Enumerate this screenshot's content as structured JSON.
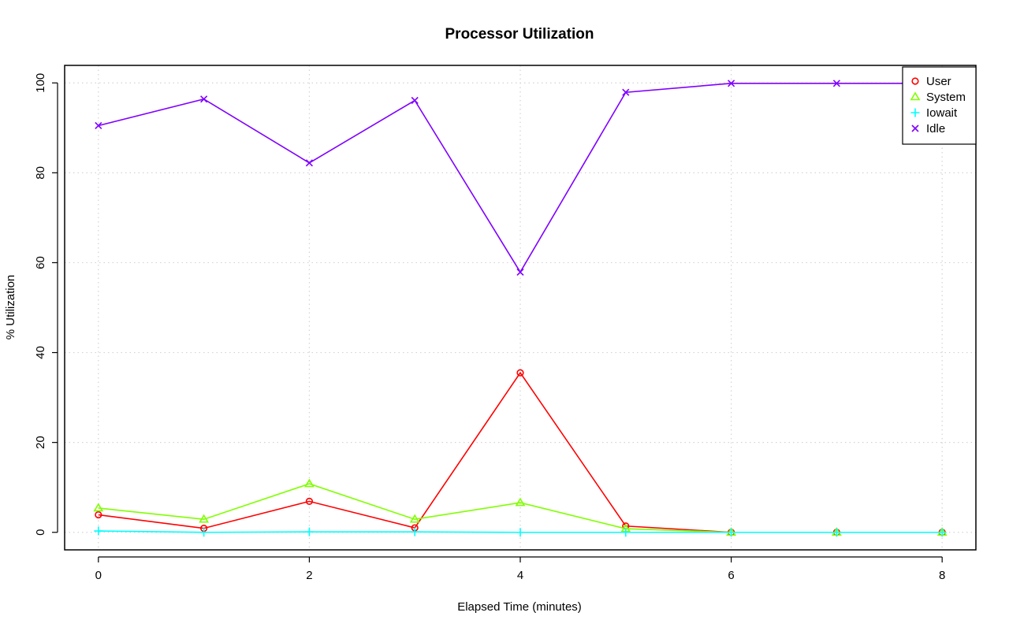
{
  "chart_data": {
    "type": "line",
    "title": "Processor Utilization",
    "xlabel": "Elapsed Time (minutes)",
    "ylabel": "% Utilization",
    "x": [
      0,
      1,
      2,
      3,
      4,
      5,
      6,
      7,
      8
    ],
    "xlim": [
      -0.32,
      8.32
    ],
    "ylim": [
      -3.9,
      103.9
    ],
    "xticks": [
      0,
      2,
      4,
      6,
      8
    ],
    "yticks": [
      0,
      20,
      40,
      60,
      80,
      100
    ],
    "grid": true,
    "legend_position": "top-right",
    "series": [
      {
        "name": "User",
        "color": "#ff0000",
        "marker": "circle",
        "values": [
          3.9,
          0.9,
          6.9,
          1.0,
          35.5,
          1.4,
          0.0,
          0.0,
          0.0
        ]
      },
      {
        "name": "System",
        "color": "#80ff00",
        "marker": "triangle",
        "values": [
          5.4,
          2.9,
          10.8,
          2.9,
          6.6,
          0.8,
          0.0,
          0.0,
          0.0
        ]
      },
      {
        "name": "Iowait",
        "color": "#00ffff",
        "marker": "plus",
        "values": [
          0.3,
          0.0,
          0.1,
          0.1,
          0.0,
          0.0,
          0.0,
          0.0,
          0.0
        ]
      },
      {
        "name": "Idle",
        "color": "#8000ff",
        "marker": "cross",
        "values": [
          90.5,
          96.4,
          82.2,
          96.1,
          57.9,
          97.9,
          99.9,
          99.9,
          99.9
        ]
      }
    ]
  }
}
